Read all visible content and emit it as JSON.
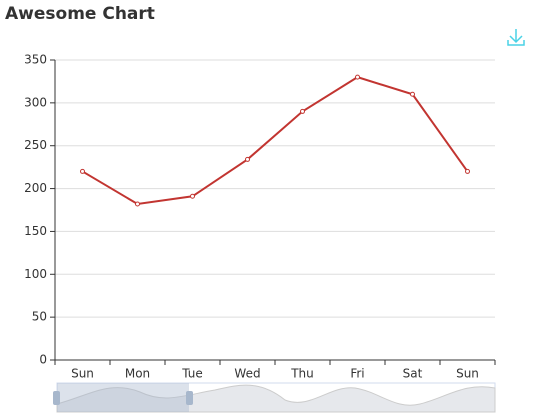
{
  "chart_data": {
    "type": "line",
    "title": "Awesome Chart",
    "categories": [
      "Sun",
      "Mon",
      "Tue",
      "Wed",
      "Thu",
      "Fri",
      "Sat",
      "Sun"
    ],
    "series": [
      {
        "color": "#c23531",
        "values": [
          220,
          182,
          191,
          234,
          290,
          330,
          310,
          220
        ]
      }
    ],
    "ylim": [
      0,
      350
    ],
    "yticks": [
      0,
      50,
      100,
      150,
      200,
      250,
      300,
      350
    ],
    "grid": true
  }
}
